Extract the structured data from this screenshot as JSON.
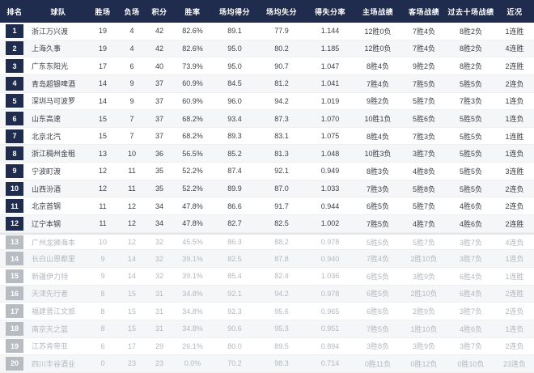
{
  "colors": {
    "header_bg": "#202c4e",
    "rank_badge_top12": "#202c4e",
    "rank_badge_bottom": "#b7bcc3",
    "row_alt_bg": "#f5f6f8",
    "dim_text": "#b3b8bf",
    "text": "#3c4046"
  },
  "table": {
    "columns": [
      "排名",
      "球队",
      "胜场",
      "负场",
      "积分",
      "胜率",
      "场均得分",
      "场均失分",
      "得失分率",
      "主场战绩",
      "客场战绩",
      "过去十场战绩",
      "近况"
    ],
    "rows": [
      {
        "rank": "1",
        "team": "浙江万兴渡",
        "wins": "19",
        "losses": "4",
        "points": "42",
        "win_rate": "82.6%",
        "avg_scored": "89.1",
        "avg_allowed": "77.9",
        "ratio": "1.144",
        "home": "12胜0负",
        "away": "7胜4负",
        "last10": "8胜2负",
        "streak": "1连胜"
      },
      {
        "rank": "2",
        "team": "上海久事",
        "wins": "19",
        "losses": "4",
        "points": "42",
        "win_rate": "82.6%",
        "avg_scored": "95.0",
        "avg_allowed": "80.2",
        "ratio": "1.185",
        "home": "12胜0负",
        "away": "7胜4负",
        "last10": "8胜2负",
        "streak": "4连胜"
      },
      {
        "rank": "3",
        "team": "广东东阳光",
        "wins": "17",
        "losses": "6",
        "points": "40",
        "win_rate": "73.9%",
        "avg_scored": "95.0",
        "avg_allowed": "90.7",
        "ratio": "1.047",
        "home": "8胜4负",
        "away": "9胜2负",
        "last10": "8胜2负",
        "streak": "2连胜"
      },
      {
        "rank": "4",
        "team": "青岛超银啤酒",
        "wins": "14",
        "losses": "9",
        "points": "37",
        "win_rate": "60.9%",
        "avg_scored": "84.5",
        "avg_allowed": "81.2",
        "ratio": "1.041",
        "home": "7胜4负",
        "away": "7胜5负",
        "last10": "5胜5负",
        "streak": "2连负"
      },
      {
        "rank": "5",
        "team": "深圳马可波罗",
        "wins": "14",
        "losses": "9",
        "points": "37",
        "win_rate": "60.9%",
        "avg_scored": "96.0",
        "avg_allowed": "94.2",
        "ratio": "1.019",
        "home": "9胜2负",
        "away": "5胜7负",
        "last10": "7胜3负",
        "streak": "1连负"
      },
      {
        "rank": "6",
        "team": "山东高速",
        "wins": "15",
        "losses": "7",
        "points": "37",
        "win_rate": "68.2%",
        "avg_scored": "93.4",
        "avg_allowed": "87.3",
        "ratio": "1.070",
        "home": "10胜1负",
        "away": "5胜6负",
        "last10": "5胜5负",
        "streak": "1连负"
      },
      {
        "rank": "7",
        "team": "北京北汽",
        "wins": "15",
        "losses": "7",
        "points": "37",
        "win_rate": "68.2%",
        "avg_scored": "89.3",
        "avg_allowed": "83.1",
        "ratio": "1.075",
        "home": "8胜4负",
        "away": "7胜3负",
        "last10": "5胜5负",
        "streak": "1连胜"
      },
      {
        "rank": "8",
        "team": "浙江稠州金租",
        "wins": "13",
        "losses": "10",
        "points": "36",
        "win_rate": "56.5%",
        "avg_scored": "85.2",
        "avg_allowed": "81.3",
        "ratio": "1.048",
        "home": "10胜3负",
        "away": "3胜7负",
        "last10": "5胜5负",
        "streak": "1连负"
      },
      {
        "rank": "9",
        "team": "宁波町渡",
        "wins": "12",
        "losses": "11",
        "points": "35",
        "win_rate": "52.2%",
        "avg_scored": "87.4",
        "avg_allowed": "92.1",
        "ratio": "0.949",
        "home": "8胜3负",
        "away": "4胜8负",
        "last10": "5胜5负",
        "streak": "3连胜"
      },
      {
        "rank": "10",
        "team": "山西汾酒",
        "wins": "12",
        "losses": "11",
        "points": "35",
        "win_rate": "52.2%",
        "avg_scored": "89.9",
        "avg_allowed": "87.0",
        "ratio": "1.033",
        "home": "7胜3负",
        "away": "5胜8负",
        "last10": "5胜5负",
        "streak": "2连负"
      },
      {
        "rank": "11",
        "team": "北京首钢",
        "wins": "11",
        "losses": "12",
        "points": "34",
        "win_rate": "47.8%",
        "avg_scored": "86.6",
        "avg_allowed": "91.7",
        "ratio": "0.944",
        "home": "6胜5负",
        "away": "5胜7负",
        "last10": "4胜6负",
        "streak": "2连负"
      },
      {
        "rank": "12",
        "team": "辽宁本钢",
        "wins": "11",
        "losses": "12",
        "points": "34",
        "win_rate": "47.8%",
        "avg_scored": "82.7",
        "avg_allowed": "82.5",
        "ratio": "1.002",
        "home": "7胜5负",
        "away": "4胜7负",
        "last10": "4胜6负",
        "streak": "2连胜"
      },
      {
        "rank": "13",
        "team": "广州龙狮海本",
        "wins": "10",
        "losses": "12",
        "points": "32",
        "win_rate": "45.5%",
        "avg_scored": "86.3",
        "avg_allowed": "88.2",
        "ratio": "0.978",
        "home": "5胜5负",
        "away": "5胜7负",
        "last10": "3胜7负",
        "streak": "4连负"
      },
      {
        "rank": "14",
        "team": "长白山恩都里",
        "wins": "9",
        "losses": "14",
        "points": "32",
        "win_rate": "39.1%",
        "avg_scored": "82.5",
        "avg_allowed": "87.8",
        "ratio": "0.940",
        "home": "7胜4负",
        "away": "2胜10负",
        "last10": "3胜7负",
        "streak": "1连负"
      },
      {
        "rank": "15",
        "team": "新疆伊力特",
        "wins": "9",
        "losses": "14",
        "points": "32",
        "win_rate": "39.1%",
        "avg_scored": "85.4",
        "avg_allowed": "82.4",
        "ratio": "1.036",
        "home": "6胜5负",
        "away": "3胜9负",
        "last10": "6胜4负",
        "streak": "1连胜"
      },
      {
        "rank": "16",
        "team": "天津先行者",
        "wins": "8",
        "losses": "15",
        "points": "31",
        "win_rate": "34.8%",
        "avg_scored": "92.1",
        "avg_allowed": "94.2",
        "ratio": "0.978",
        "home": "6胜5负",
        "away": "2胜10负",
        "last10": "6胜4负",
        "streak": "2连胜"
      },
      {
        "rank": "17",
        "team": "福建晋江文旅",
        "wins": "8",
        "losses": "15",
        "points": "31",
        "win_rate": "34.8%",
        "avg_scored": "92.3",
        "avg_allowed": "95.6",
        "ratio": "0.965",
        "home": "6胜6负",
        "away": "2胜9负",
        "last10": "3胜7负",
        "streak": "2连负"
      },
      {
        "rank": "18",
        "team": "南京天之蓝",
        "wins": "8",
        "losses": "15",
        "points": "31",
        "win_rate": "34.8%",
        "avg_scored": "90.6",
        "avg_allowed": "95.3",
        "ratio": "0.951",
        "home": "7胜5负",
        "away": "1胜10负",
        "last10": "4胜6负",
        "streak": "1连负"
      },
      {
        "rank": "19",
        "team": "江苏肯帝亚",
        "wins": "6",
        "losses": "17",
        "points": "29",
        "win_rate": "26.1%",
        "avg_scored": "80.0",
        "avg_allowed": "89.5",
        "ratio": "0.894",
        "home": "3胜8负",
        "away": "3胜9负",
        "last10": "3胜7负",
        "streak": "2连负"
      },
      {
        "rank": "20",
        "team": "四川丰谷酒业",
        "wins": "0",
        "losses": "23",
        "points": "23",
        "win_rate": "0.0%",
        "avg_scored": "70.2",
        "avg_allowed": "98.3",
        "ratio": "0.714",
        "home": "0胜11负",
        "away": "0胜12负",
        "last10": "0胜10负",
        "streak": "23连负"
      }
    ]
  }
}
